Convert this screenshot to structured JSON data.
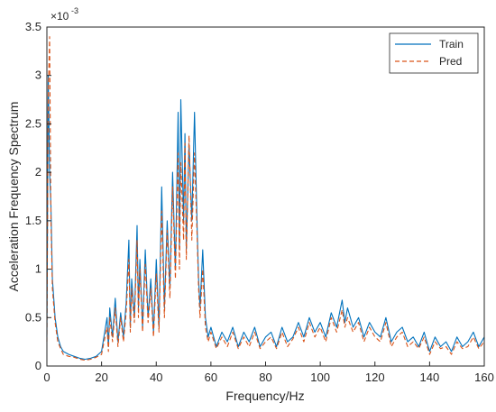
{
  "chart_data": {
    "type": "line",
    "title": "",
    "xlabel": "Frequency/Hz",
    "ylabel": "Acceleration Frequency Spectrum",
    "xlim": [
      0,
      160
    ],
    "ylim": [
      0,
      3.5
    ],
    "y_scale_label": "×10",
    "y_scale_exponent": "-3",
    "xticks": [
      "0",
      "20",
      "40",
      "60",
      "80",
      "100",
      "120",
      "140",
      "160"
    ],
    "yticks": [
      "0",
      "0.5",
      "1",
      "1.5",
      "2",
      "2.5",
      "3",
      "3.5"
    ],
    "grid": false,
    "legend_position": "top-right",
    "series": [
      {
        "name": "Train",
        "color": "#0072BD",
        "dash": "solid",
        "x": [
          0,
          0.5,
          1,
          1.5,
          2,
          3,
          4,
          5,
          6,
          8,
          10,
          12,
          14,
          16,
          18,
          20,
          22,
          22.5,
          23,
          24,
          25,
          26,
          27,
          28,
          29,
          30,
          30.5,
          31,
          32,
          33,
          33.5,
          34,
          35,
          36,
          37,
          38,
          39,
          40,
          41,
          42,
          43,
          44,
          45,
          46,
          47,
          48,
          48.5,
          49,
          50,
          50.5,
          51,
          52,
          53,
          54,
          55,
          55.5,
          56,
          57,
          58,
          59,
          60,
          62,
          64,
          66,
          68,
          70,
          72,
          74,
          76,
          78,
          80,
          82,
          84,
          86,
          88,
          90,
          92,
          94,
          96,
          98,
          100,
          102,
          104,
          106,
          108,
          109,
          110,
          112,
          114,
          116,
          118,
          120,
          122,
          124,
          126,
          128,
          130,
          132,
          134,
          136,
          138,
          140,
          142,
          144,
          146,
          148,
          150,
          152,
          154,
          156,
          158,
          160
        ],
        "values": [
          0.3,
          3.0,
          2.0,
          1.65,
          0.9,
          0.5,
          0.3,
          0.2,
          0.15,
          0.12,
          0.1,
          0.08,
          0.07,
          0.08,
          0.1,
          0.15,
          0.5,
          0.2,
          0.6,
          0.3,
          0.7,
          0.25,
          0.55,
          0.3,
          0.65,
          1.3,
          0.4,
          0.9,
          0.5,
          1.45,
          0.6,
          1.1,
          0.4,
          1.2,
          0.5,
          0.9,
          0.35,
          1.1,
          0.4,
          1.85,
          0.6,
          1.5,
          0.8,
          2.0,
          1.0,
          2.62,
          1.2,
          2.75,
          1.5,
          2.4,
          1.2,
          2.3,
          1.5,
          2.62,
          1.4,
          0.9,
          0.6,
          1.2,
          0.5,
          0.3,
          0.4,
          0.2,
          0.35,
          0.25,
          0.4,
          0.2,
          0.35,
          0.25,
          0.4,
          0.2,
          0.3,
          0.35,
          0.2,
          0.4,
          0.25,
          0.3,
          0.45,
          0.3,
          0.5,
          0.35,
          0.45,
          0.3,
          0.55,
          0.4,
          0.68,
          0.45,
          0.6,
          0.4,
          0.5,
          0.3,
          0.45,
          0.35,
          0.3,
          0.5,
          0.25,
          0.35,
          0.4,
          0.25,
          0.3,
          0.2,
          0.35,
          0.15,
          0.3,
          0.2,
          0.25,
          0.15,
          0.3,
          0.2,
          0.25,
          0.35,
          0.2,
          0.3
        ]
      },
      {
        "name": "Pred",
        "color": "#D95319",
        "dash": "dashed",
        "x": [
          0,
          0.5,
          1,
          1.5,
          2,
          3,
          4,
          5,
          6,
          8,
          10,
          12,
          14,
          16,
          18,
          20,
          22,
          22.5,
          23,
          24,
          25,
          26,
          27,
          28,
          29,
          30,
          30.5,
          31,
          32,
          33,
          33.5,
          34,
          35,
          36,
          37,
          38,
          39,
          40,
          41,
          42,
          43,
          44,
          45,
          46,
          47,
          48,
          48.5,
          49,
          50,
          50.5,
          51,
          52,
          53,
          54,
          55,
          55.5,
          56,
          57,
          58,
          59,
          60,
          62,
          64,
          66,
          68,
          70,
          72,
          74,
          76,
          78,
          80,
          82,
          84,
          86,
          88,
          90,
          92,
          94,
          96,
          98,
          100,
          102,
          104,
          106,
          108,
          109,
          110,
          112,
          114,
          116,
          118,
          120,
          122,
          124,
          126,
          128,
          130,
          132,
          134,
          136,
          138,
          140,
          142,
          144,
          146,
          148,
          150,
          152,
          154,
          156,
          158,
          160
        ],
        "values": [
          0.25,
          2.8,
          3.4,
          1.5,
          0.8,
          0.45,
          0.25,
          0.18,
          0.12,
          0.1,
          0.09,
          0.07,
          0.06,
          0.07,
          0.09,
          0.12,
          0.4,
          0.15,
          0.5,
          0.25,
          0.6,
          0.2,
          0.5,
          0.25,
          0.55,
          1.1,
          0.35,
          0.8,
          0.45,
          1.3,
          0.5,
          1.0,
          0.35,
          1.05,
          0.45,
          0.8,
          0.3,
          0.95,
          0.35,
          1.6,
          0.5,
          1.4,
          0.7,
          1.85,
          0.9,
          2.2,
          1.0,
          2.1,
          1.3,
          2.3,
          1.1,
          2.38,
          1.3,
          2.2,
          1.3,
          0.8,
          0.5,
          1.0,
          0.4,
          0.25,
          0.35,
          0.18,
          0.3,
          0.2,
          0.35,
          0.18,
          0.3,
          0.2,
          0.35,
          0.18,
          0.25,
          0.3,
          0.18,
          0.35,
          0.2,
          0.28,
          0.4,
          0.25,
          0.45,
          0.3,
          0.4,
          0.25,
          0.5,
          0.35,
          0.58,
          0.4,
          0.5,
          0.35,
          0.45,
          0.25,
          0.4,
          0.3,
          0.25,
          0.45,
          0.2,
          0.3,
          0.35,
          0.2,
          0.25,
          0.18,
          0.3,
          0.12,
          0.25,
          0.18,
          0.2,
          0.12,
          0.25,
          0.18,
          0.2,
          0.3,
          0.18,
          0.25
        ]
      }
    ]
  }
}
